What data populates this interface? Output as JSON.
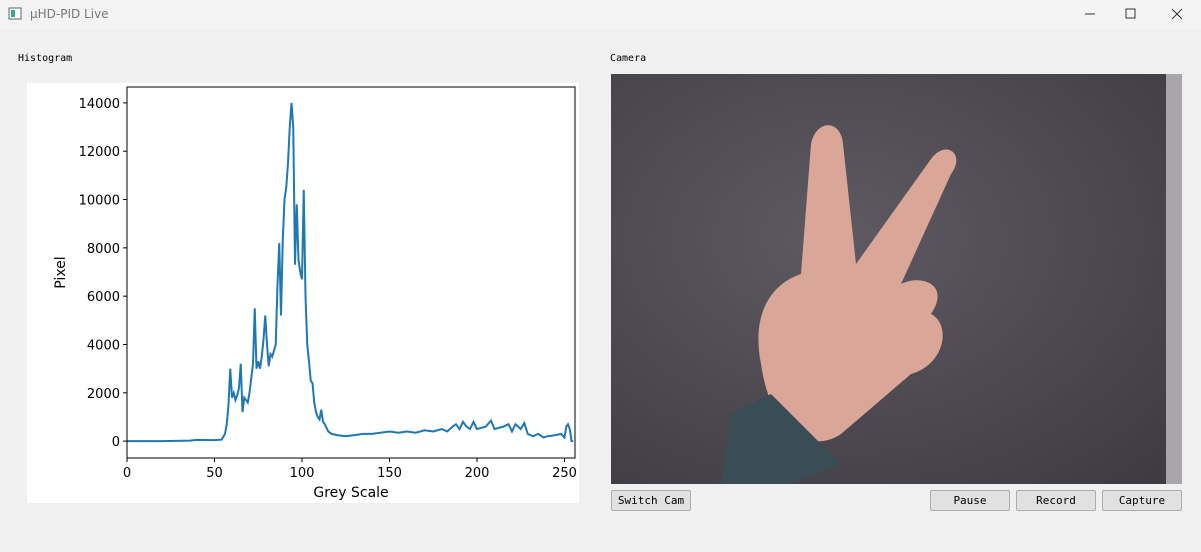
{
  "window": {
    "title": "µHD-PID Live"
  },
  "panels": {
    "histogram_label": "Histogram",
    "camera_label": "Camera"
  },
  "buttons": {
    "switch_cam": "Switch Cam",
    "pause": "Pause",
    "record": "Record",
    "capture": "Capture"
  },
  "chart_data": {
    "type": "line",
    "xlabel": "Grey Scale",
    "ylabel": "Pixel",
    "color": "#1f77b4",
    "x": [
      0,
      20,
      36,
      40,
      50,
      54,
      56,
      57,
      58,
      59,
      60,
      61,
      62,
      63,
      64,
      65,
      66,
      67,
      68,
      69,
      70,
      72,
      73,
      74,
      75,
      76,
      77,
      78,
      79,
      80,
      81,
      82,
      83,
      85,
      86,
      87,
      88,
      89,
      90,
      91,
      92,
      93,
      94,
      95,
      96,
      97,
      98,
      99,
      100,
      101,
      102,
      103,
      104,
      105,
      106,
      107,
      108,
      109,
      110,
      111,
      112,
      113,
      115,
      117,
      120,
      125,
      130,
      135,
      140,
      145,
      150,
      155,
      160,
      165,
      170,
      175,
      180,
      183,
      186,
      188,
      190,
      192,
      194,
      196,
      198,
      200,
      205,
      208,
      210,
      215,
      218,
      220,
      222,
      225,
      227,
      229,
      232,
      235,
      238,
      240,
      245,
      248,
      250,
      251,
      252,
      253,
      254,
      255
    ],
    "values": [
      0,
      0,
      20,
      50,
      40,
      60,
      300,
      700,
      1500,
      3000,
      1800,
      2000,
      1700,
      1900,
      2200,
      3200,
      1200,
      1800,
      1700,
      1600,
      2000,
      3200,
      5500,
      3000,
      3300,
      3000,
      3500,
      4200,
      5200,
      4000,
      3100,
      3600,
      3500,
      4000,
      6500,
      8200,
      5200,
      8300,
      10000,
      10500,
      11500,
      13000,
      14000,
      13000,
      7300,
      9800,
      7500,
      7000,
      6700,
      10400,
      6000,
      4000,
      3300,
      2500,
      2400,
      1600,
      1200,
      1000,
      900,
      1300,
      800,
      700,
      400,
      300,
      250,
      200,
      250,
      300,
      300,
      350,
      400,
      350,
      400,
      350,
      450,
      400,
      500,
      400,
      600,
      700,
      500,
      800,
      600,
      500,
      800,
      500,
      600,
      850,
      500,
      600,
      700,
      400,
      700,
      500,
      750,
      300,
      200,
      300,
      150,
      200,
      250,
      300,
      150,
      600,
      700,
      500,
      0,
      0
    ],
    "xlim": [
      0,
      256
    ],
    "ylim": [
      -698,
      14658
    ],
    "xticks": [
      0,
      50,
      100,
      150,
      200,
      250
    ],
    "yticks": [
      0,
      2000,
      4000,
      6000,
      8000,
      10000,
      12000,
      14000
    ]
  }
}
